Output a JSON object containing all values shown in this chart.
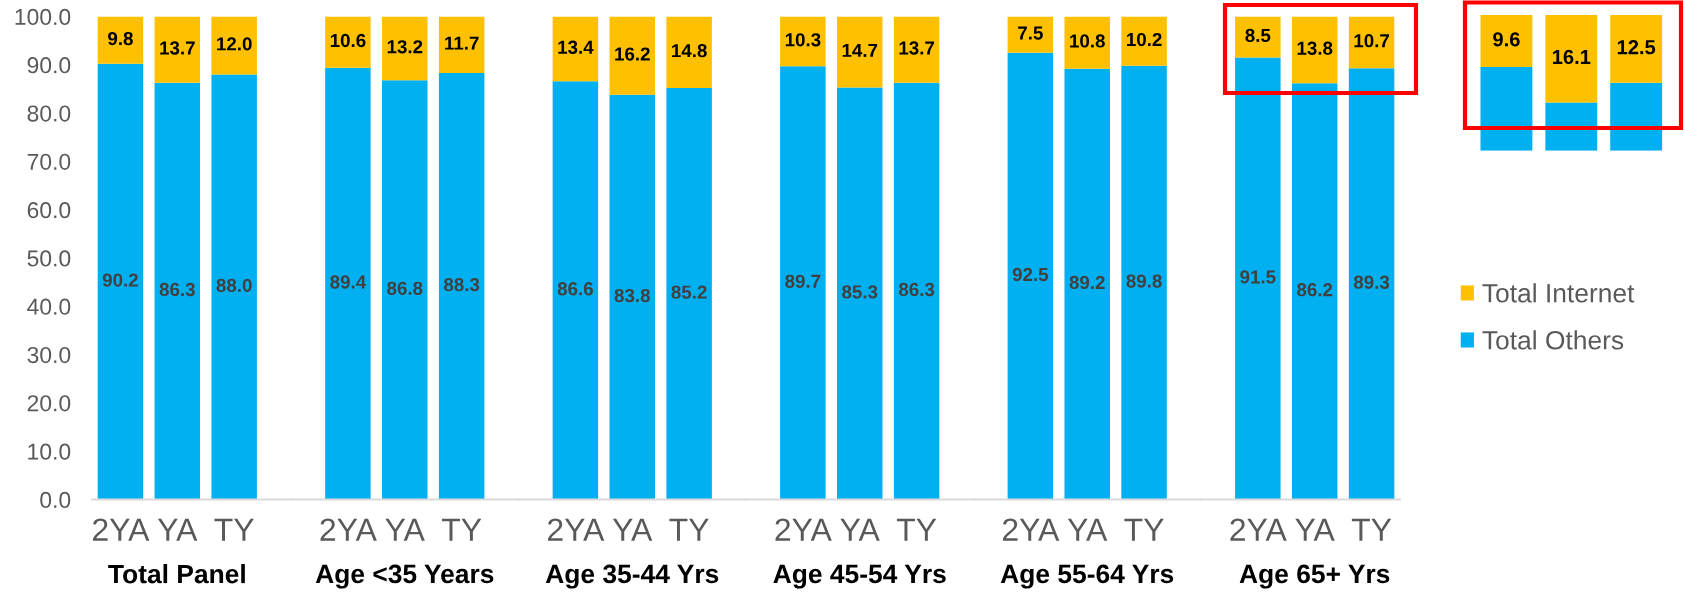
{
  "chart_data": [
    {
      "type": "bar",
      "stacked": true,
      "xlabel": "Total Panel",
      "categories": [
        "2YA",
        "YA",
        "TY"
      ],
      "series": [
        {
          "name": "Total Others",
          "color": "#00b0f0",
          "values": [
            90.2,
            86.3,
            88.0
          ],
          "value_labels": [
            "90.2",
            "86.3",
            "88.0"
          ]
        },
        {
          "name": "Total Internet",
          "color": "#ffc000",
          "values": [
            9.8,
            13.7,
            12.0
          ],
          "value_labels": [
            "9.8",
            "13.7",
            "12.0"
          ]
        }
      ],
      "ylim": [
        0,
        100
      ],
      "yticks": [
        {
          "value": 0,
          "label": "0.0"
        },
        {
          "value": 10,
          "label": "10.0"
        },
        {
          "value": 20,
          "label": "20.0"
        },
        {
          "value": 30,
          "label": "30.0"
        },
        {
          "value": 40,
          "label": "40.0"
        },
        {
          "value": 50,
          "label": "50.0"
        },
        {
          "value": 60,
          "label": "60.0"
        },
        {
          "value": 70,
          "label": "70.0"
        },
        {
          "value": 80,
          "label": "80.0"
        },
        {
          "value": 90,
          "label": "90.0"
        },
        {
          "value": 100,
          "label": "100.0"
        }
      ],
      "legend": "right"
    },
    {
      "type": "bar",
      "stacked": true,
      "xlabel": "Age <35 Years",
      "categories": [
        "2YA",
        "YA",
        "TY"
      ],
      "series": [
        {
          "color": "#00b0f0",
          "values": [
            89.4,
            86.8,
            88.3
          ],
          "value_labels": [
            "89.4",
            "86.8",
            "88.3"
          ]
        },
        {
          "color": "#ffc000",
          "values": [
            10.6,
            13.2,
            11.7
          ],
          "value_labels": [
            "10.6",
            "13.2",
            "11.7"
          ]
        }
      ],
      "ylim": [
        0,
        100
      ],
      "tick_labels": "x"
    },
    {
      "type": "bar",
      "stacked": true,
      "xlabel": "Age 35-44 Yrs",
      "categories": [
        "2YA",
        "YA",
        "TY"
      ],
      "series": [
        {
          "color": "#00b0f0",
          "values": [
            86.6,
            83.8,
            85.2
          ],
          "value_labels": [
            "86.6",
            "83.8",
            "85.2"
          ]
        },
        {
          "color": "#ffc000",
          "values": [
            13.4,
            16.2,
            14.8
          ],
          "value_labels": [
            "13.4",
            "16.2",
            "14.8"
          ]
        }
      ],
      "ylim": [
        0,
        100
      ],
      "tick_labels": "x"
    },
    {
      "type": "bar",
      "stacked": true,
      "xlabel": "Age 45-54 Yrs",
      "categories": [
        "2YA",
        "YA",
        "TY"
      ],
      "series": [
        {
          "color": "#00b0f0",
          "values": [
            89.7,
            85.3,
            86.3
          ],
          "value_labels": [
            "89.7",
            "85.3",
            "86.3"
          ]
        },
        {
          "color": "#ffc000",
          "values": [
            10.3,
            14.7,
            13.7
          ],
          "value_labels": [
            "10.3",
            "14.7",
            "13.7"
          ]
        }
      ],
      "ylim": [
        0,
        100
      ],
      "tick_labels": "x"
    },
    {
      "type": "bar",
      "stacked": true,
      "xlabel": "Age 55-64 Yrs",
      "categories": [
        "2YA",
        "YA",
        "TY"
      ],
      "series": [
        {
          "color": "#00b0f0",
          "values": [
            92.5,
            89.2,
            89.8
          ],
          "value_labels": [
            "92.5",
            "89.2",
            "89.8"
          ]
        },
        {
          "color": "#ffc000",
          "values": [
            7.5,
            10.8,
            10.2
          ],
          "value_labels": [
            "7.5",
            "10.8",
            "10.2"
          ]
        }
      ],
      "ylim": [
        0,
        100
      ],
      "tick_labels": "x"
    },
    {
      "type": "bar",
      "stacked": true,
      "xlabel": "Age 65+ Yrs",
      "categories": [
        "2YA",
        "YA",
        "TY"
      ],
      "series": [
        {
          "color": "#00b0f0",
          "values": [
            91.5,
            86.2,
            89.3
          ],
          "value_labels": [
            "91.5",
            "86.2",
            "89.3"
          ]
        },
        {
          "color": "#ffc000",
          "values": [
            8.5,
            13.8,
            10.7
          ],
          "value_labels": [
            "8.5",
            "13.8",
            "10.7"
          ]
        }
      ],
      "ylim": [
        0,
        100
      ],
      "tick_labels": "x"
    },
    {
      "type": "bar",
      "stacked": true,
      "categories": [
        null,
        null,
        null
      ],
      "series": [
        {
          "color": "#00b0f0",
          "values": [
            15.4,
            8.9,
            12.5
          ]
        },
        {
          "color": "#ffc000",
          "values": [
            9.6,
            16.1,
            12.5
          ],
          "value_labels": [
            "9.6",
            "16.1",
            "12.5"
          ]
        }
      ]
    }
  ]
}
